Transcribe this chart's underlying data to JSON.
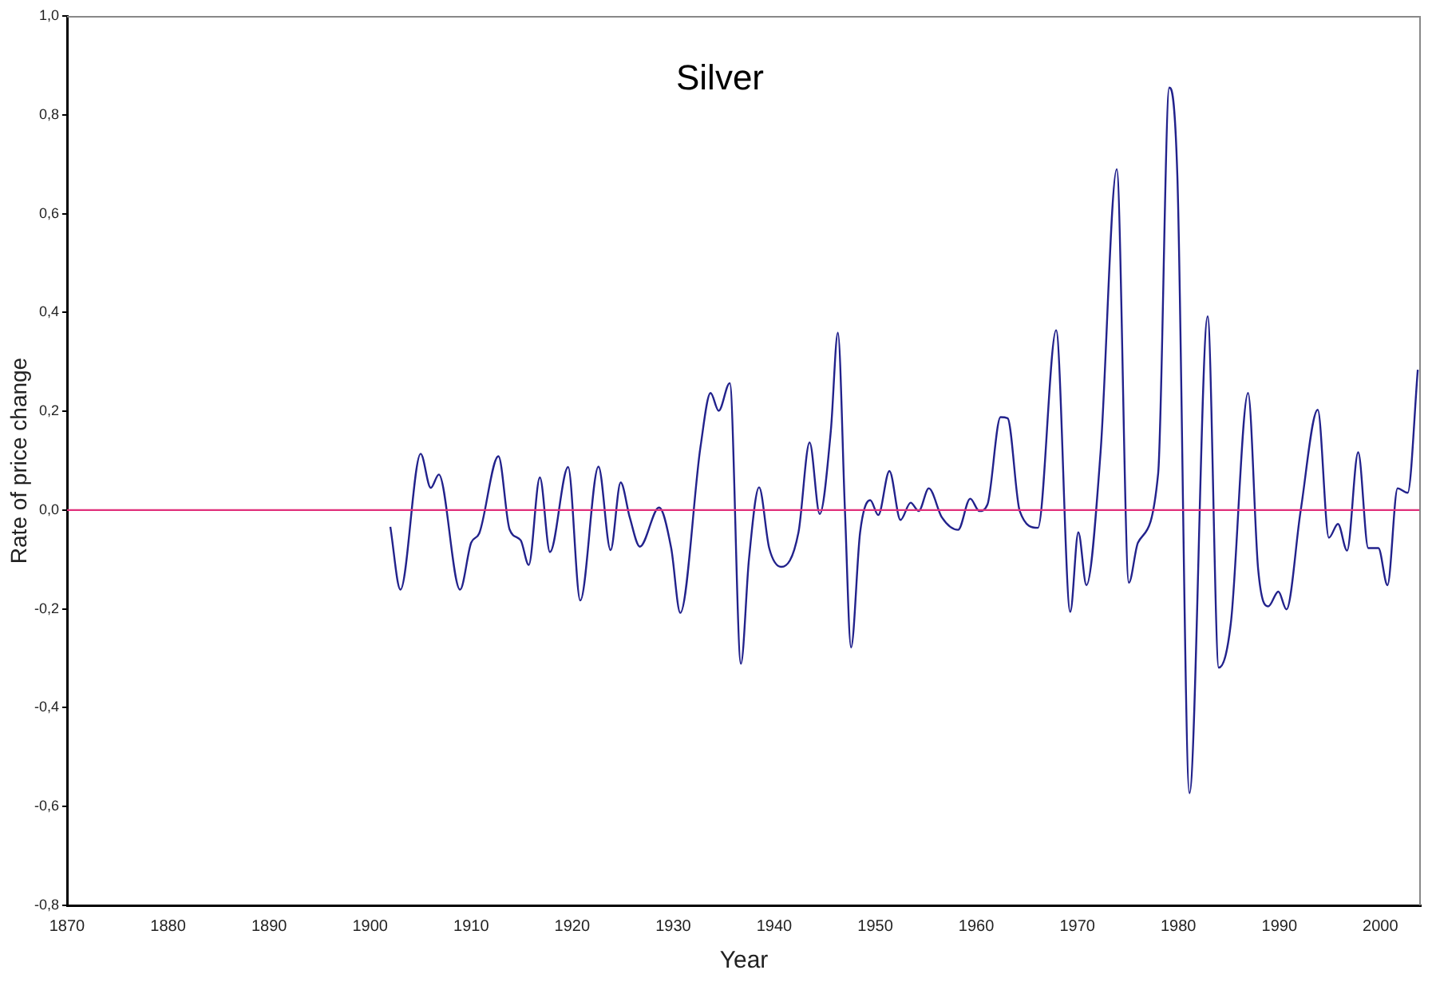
{
  "chart_data": {
    "type": "line",
    "title": "Silver",
    "xlabel": "Year",
    "ylabel": "Rate of price change",
    "x": [
      1902.0,
      1903.0,
      1905.0,
      1906.0,
      1906.8,
      1908.9,
      1910.0,
      1910.8,
      1912.7,
      1913.8,
      1914.9,
      1915.7,
      1916.8,
      1917.8,
      1919.6,
      1920.8,
      1922.6,
      1923.8,
      1924.8,
      1925.7,
      1926.7,
      1928.6,
      1929.8,
      1930.7,
      1932.7,
      1933.7,
      1934.5,
      1935.6,
      1936.7,
      1937.5,
      1938.5,
      1939.5,
      1940.7,
      1942.4,
      1943.5,
      1944.5,
      1945.6,
      1946.3,
      1947.0,
      1947.6,
      1948.5,
      1949.5,
      1950.3,
      1951.4,
      1952.5,
      1953.5,
      1954.3,
      1955.3,
      1956.6,
      1958.2,
      1959.4,
      1960.3,
      1961.1,
      1962.4,
      1963.1,
      1964.3,
      1966.1,
      1967.9,
      1969.3,
      1970.1,
      1970.9,
      1972.3,
      1973.9,
      1975.1,
      1976.0,
      1978.0,
      1979.1,
      1979.9,
      1981.1,
      1982.9,
      1984.0,
      1985.2,
      1986.9,
      1987.9,
      1988.9,
      1989.9,
      1990.7,
      1992.1,
      1993.8,
      1994.9,
      1995.8,
      1996.7,
      1997.8,
      1998.8,
      1999.8,
      2000.7,
      2001.7,
      2002.7,
      2003.7
    ],
    "values": [
      -0.034,
      -0.161,
      0.114,
      0.045,
      0.072,
      -0.161,
      -0.066,
      -0.047,
      0.109,
      -0.039,
      -0.061,
      -0.111,
      0.066,
      -0.085,
      0.087,
      -0.183,
      0.088,
      -0.081,
      0.056,
      -0.015,
      -0.074,
      0.005,
      -0.077,
      -0.208,
      0.128,
      0.237,
      0.201,
      0.257,
      -0.311,
      -0.099,
      0.046,
      -0.077,
      -0.115,
      -0.045,
      0.137,
      -0.008,
      0.16,
      0.359,
      -0.002,
      -0.278,
      -0.045,
      0.02,
      -0.01,
      0.079,
      -0.02,
      0.015,
      -0.002,
      0.044,
      -0.015,
      -0.04,
      0.023,
      -0.002,
      0.011,
      0.188,
      0.186,
      -0.002,
      -0.036,
      0.364,
      -0.206,
      -0.045,
      -0.152,
      0.117,
      0.69,
      -0.147,
      -0.066,
      0.074,
      0.855,
      0.677,
      -0.573,
      0.392,
      -0.319,
      -0.228,
      0.237,
      -0.12,
      -0.195,
      -0.165,
      -0.201,
      -0.002,
      0.203,
      -0.056,
      -0.028,
      -0.082,
      0.117,
      -0.077,
      -0.077,
      -0.152,
      0.044,
      0.035,
      0.284
    ],
    "color": "#22228c",
    "marker": "none",
    "line_style": "solid",
    "xlim": [
      1870,
      2004
    ],
    "xticks": [
      1870,
      1880,
      1890,
      1900,
      1910,
      1920,
      1930,
      1940,
      1950,
      1960,
      1970,
      1980,
      1990,
      2000
    ],
    "ylim": [
      -0.8,
      1.0
    ],
    "yticks": [
      {
        "value": -0.8,
        "label": "-0,8"
      },
      {
        "value": -0.6,
        "label": "-0,6"
      },
      {
        "value": -0.4,
        "label": "-0,4"
      },
      {
        "value": -0.2,
        "label": "-0,2"
      },
      {
        "value": 0,
        "label": "0,0"
      },
      {
        "value": 0.2,
        "label": "0,2"
      },
      {
        "value": 0.4,
        "label": "0,4"
      },
      {
        "value": 0.6,
        "label": "0,6"
      },
      {
        "value": 0.8,
        "label": "0,8"
      },
      {
        "value": 1.0,
        "label": "1,0"
      }
    ],
    "ref_lines": [
      {
        "axis": "y",
        "value": 0,
        "color": "#e0307a"
      }
    ]
  }
}
